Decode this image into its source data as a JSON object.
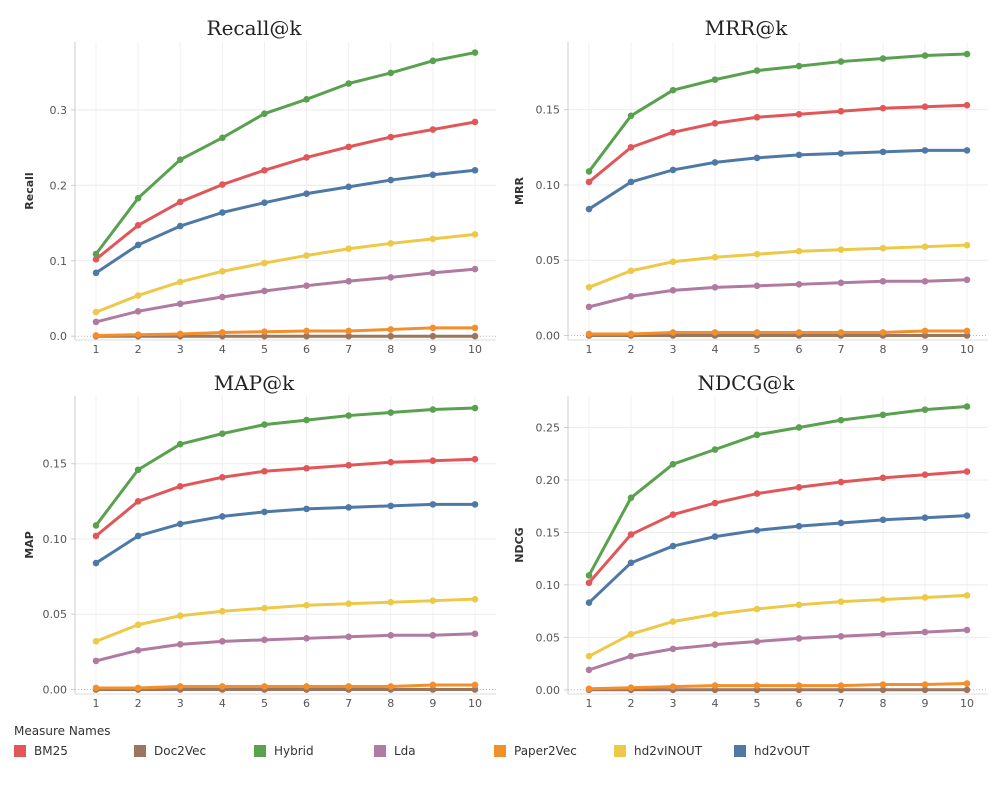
{
  "legend": {
    "title": "Measure Names",
    "items": [
      {
        "name": "BM25",
        "color": "#e15759"
      },
      {
        "name": "Doc2Vec",
        "color": "#9c755f"
      },
      {
        "name": "Hybrid",
        "color": "#59a14f"
      },
      {
        "name": "Lda",
        "color": "#b07aa1"
      },
      {
        "name": "Paper2Vec",
        "color": "#f28e2b"
      },
      {
        "name": "hd2vIN­OUT",
        "color": "#edc948"
      },
      {
        "name": "hd2vOUT",
        "color": "#4e79a7"
      }
    ]
  },
  "chart_data": [
    {
      "type": "line",
      "title": "Recall@k",
      "ylabel": "Recall",
      "xlabel": "",
      "x": [
        1,
        2,
        3,
        4,
        5,
        6,
        7,
        8,
        9,
        10
      ],
      "ylim": [
        -0.005,
        0.39
      ],
      "yticks": [
        0.0,
        0.1,
        0.2,
        0.3
      ],
      "ytick_labels": [
        "0.0",
        "0.1",
        "0.2",
        "0.3"
      ],
      "series": [
        {
          "name": "Doc2Vec",
          "color": "#9c755f",
          "values": [
            0,
            0,
            0,
            0,
            0,
            0,
            0,
            0,
            0,
            0
          ]
        },
        {
          "name": "Paper2Vec",
          "color": "#f28e2b",
          "values": [
            0.001,
            0.002,
            0.003,
            0.005,
            0.006,
            0.007,
            0.007,
            0.009,
            0.011,
            0.011
          ]
        },
        {
          "name": "Lda",
          "color": "#b07aa1",
          "values": [
            0.019,
            0.033,
            0.043,
            0.052,
            0.06,
            0.067,
            0.073,
            0.078,
            0.084,
            0.089
          ]
        },
        {
          "name": "hd2vIN­OUT",
          "color": "#edc948",
          "values": [
            0.032,
            0.054,
            0.072,
            0.086,
            0.097,
            0.107,
            0.116,
            0.123,
            0.129,
            0.135
          ]
        },
        {
          "name": "hd2vOUT",
          "color": "#4e79a7",
          "values": [
            0.084,
            0.121,
            0.146,
            0.164,
            0.177,
            0.189,
            0.198,
            0.207,
            0.214,
            0.22
          ]
        },
        {
          "name": "BM25",
          "color": "#e15759",
          "values": [
            0.102,
            0.147,
            0.178,
            0.201,
            0.22,
            0.237,
            0.251,
            0.264,
            0.274,
            0.284
          ]
        },
        {
          "name": "Hybrid",
          "color": "#59a14f",
          "values": [
            0.109,
            0.183,
            0.234,
            0.263,
            0.295,
            0.314,
            0.335,
            0.349,
            0.365,
            0.376
          ]
        }
      ]
    },
    {
      "type": "line",
      "title": "MRR@k",
      "ylabel": "MRR",
      "xlabel": "",
      "x": [
        1,
        2,
        3,
        4,
        5,
        6,
        7,
        8,
        9,
        10
      ],
      "ylim": [
        -0.003,
        0.195
      ],
      "yticks": [
        0.0,
        0.05,
        0.1,
        0.15
      ],
      "ytick_labels": [
        "0.00",
        "0.05",
        "0.10",
        "0.15"
      ],
      "series": [
        {
          "name": "Doc2Vec",
          "color": "#9c755f",
          "values": [
            0,
            0,
            0,
            0,
            0,
            0,
            0,
            0,
            0,
            0
          ]
        },
        {
          "name": "Paper2Vec",
          "color": "#f28e2b",
          "values": [
            0.001,
            0.001,
            0.002,
            0.002,
            0.002,
            0.002,
            0.002,
            0.002,
            0.003,
            0.003
          ]
        },
        {
          "name": "Lda",
          "color": "#b07aa1",
          "values": [
            0.019,
            0.026,
            0.03,
            0.032,
            0.033,
            0.034,
            0.035,
            0.036,
            0.036,
            0.037
          ]
        },
        {
          "name": "hd2vIN­OUT",
          "color": "#edc948",
          "values": [
            0.032,
            0.043,
            0.049,
            0.052,
            0.054,
            0.056,
            0.057,
            0.058,
            0.059,
            0.06
          ]
        },
        {
          "name": "hd2vOUT",
          "color": "#4e79a7",
          "values": [
            0.084,
            0.102,
            0.11,
            0.115,
            0.118,
            0.12,
            0.121,
            0.122,
            0.123,
            0.123
          ]
        },
        {
          "name": "BM25",
          "color": "#e15759",
          "values": [
            0.102,
            0.125,
            0.135,
            0.141,
            0.145,
            0.147,
            0.149,
            0.151,
            0.152,
            0.153
          ]
        },
        {
          "name": "Hybrid",
          "color": "#59a14f",
          "values": [
            0.109,
            0.146,
            0.163,
            0.17,
            0.176,
            0.179,
            0.182,
            0.184,
            0.186,
            0.187
          ]
        }
      ]
    },
    {
      "type": "line",
      "title": "MAP@k",
      "ylabel": "MAP",
      "xlabel": "",
      "x": [
        1,
        2,
        3,
        4,
        5,
        6,
        7,
        8,
        9,
        10
      ],
      "ylim": [
        -0.003,
        0.195
      ],
      "yticks": [
        0.0,
        0.05,
        0.1,
        0.15
      ],
      "ytick_labels": [
        "0.00",
        "0.05",
        "0.10",
        "0.15"
      ],
      "series": [
        {
          "name": "Doc2Vec",
          "color": "#9c755f",
          "values": [
            0,
            0,
            0,
            0,
            0,
            0,
            0,
            0,
            0,
            0
          ]
        },
        {
          "name": "Paper2Vec",
          "color": "#f28e2b",
          "values": [
            0.001,
            0.001,
            0.002,
            0.002,
            0.002,
            0.002,
            0.002,
            0.002,
            0.003,
            0.003
          ]
        },
        {
          "name": "Lda",
          "color": "#b07aa1",
          "values": [
            0.019,
            0.026,
            0.03,
            0.032,
            0.033,
            0.034,
            0.035,
            0.036,
            0.036,
            0.037
          ]
        },
        {
          "name": "hd2vIN­OUT",
          "color": "#edc948",
          "values": [
            0.032,
            0.043,
            0.049,
            0.052,
            0.054,
            0.056,
            0.057,
            0.058,
            0.059,
            0.06
          ]
        },
        {
          "name": "hd2vOUT",
          "color": "#4e79a7",
          "values": [
            0.084,
            0.102,
            0.11,
            0.115,
            0.118,
            0.12,
            0.121,
            0.122,
            0.123,
            0.123
          ]
        },
        {
          "name": "BM25",
          "color": "#e15759",
          "values": [
            0.102,
            0.125,
            0.135,
            0.141,
            0.145,
            0.147,
            0.149,
            0.151,
            0.152,
            0.153
          ]
        },
        {
          "name": "Hybrid",
          "color": "#59a14f",
          "values": [
            0.109,
            0.146,
            0.163,
            0.17,
            0.176,
            0.179,
            0.182,
            0.184,
            0.186,
            0.187
          ]
        }
      ]
    },
    {
      "type": "line",
      "title": "NDCG@k",
      "ylabel": "NDCG",
      "xlabel": "",
      "x": [
        1,
        2,
        3,
        4,
        5,
        6,
        7,
        8,
        9,
        10
      ],
      "ylim": [
        -0.004,
        0.28
      ],
      "yticks": [
        0.0,
        0.05,
        0.1,
        0.15,
        0.2,
        0.25
      ],
      "ytick_labels": [
        "0.00",
        "0.05",
        "0.10",
        "0.15",
        "0.20",
        "0.25"
      ],
      "series": [
        {
          "name": "Doc2Vec",
          "color": "#9c755f",
          "values": [
            0,
            0,
            0,
            0,
            0,
            0,
            0,
            0,
            0,
            0
          ]
        },
        {
          "name": "Paper2Vec",
          "color": "#f28e2b",
          "values": [
            0.001,
            0.002,
            0.003,
            0.004,
            0.004,
            0.004,
            0.004,
            0.005,
            0.005,
            0.006
          ]
        },
        {
          "name": "Lda",
          "color": "#b07aa1",
          "values": [
            0.019,
            0.032,
            0.039,
            0.043,
            0.046,
            0.049,
            0.051,
            0.053,
            0.055,
            0.057
          ]
        },
        {
          "name": "hd2vIN­OUT",
          "color": "#edc948",
          "values": [
            0.032,
            0.053,
            0.065,
            0.072,
            0.077,
            0.081,
            0.084,
            0.086,
            0.088,
            0.09
          ]
        },
        {
          "name": "hd2vOUT",
          "color": "#4e79a7",
          "values": [
            0.083,
            0.121,
            0.137,
            0.146,
            0.152,
            0.156,
            0.159,
            0.162,
            0.164,
            0.166
          ]
        },
        {
          "name": "BM25",
          "color": "#e15759",
          "values": [
            0.102,
            0.148,
            0.167,
            0.178,
            0.187,
            0.193,
            0.198,
            0.202,
            0.205,
            0.208
          ]
        },
        {
          "name": "Hybrid",
          "color": "#59a14f",
          "values": [
            0.109,
            0.183,
            0.215,
            0.229,
            0.243,
            0.25,
            0.257,
            0.262,
            0.267,
            0.27
          ]
        }
      ]
    }
  ]
}
